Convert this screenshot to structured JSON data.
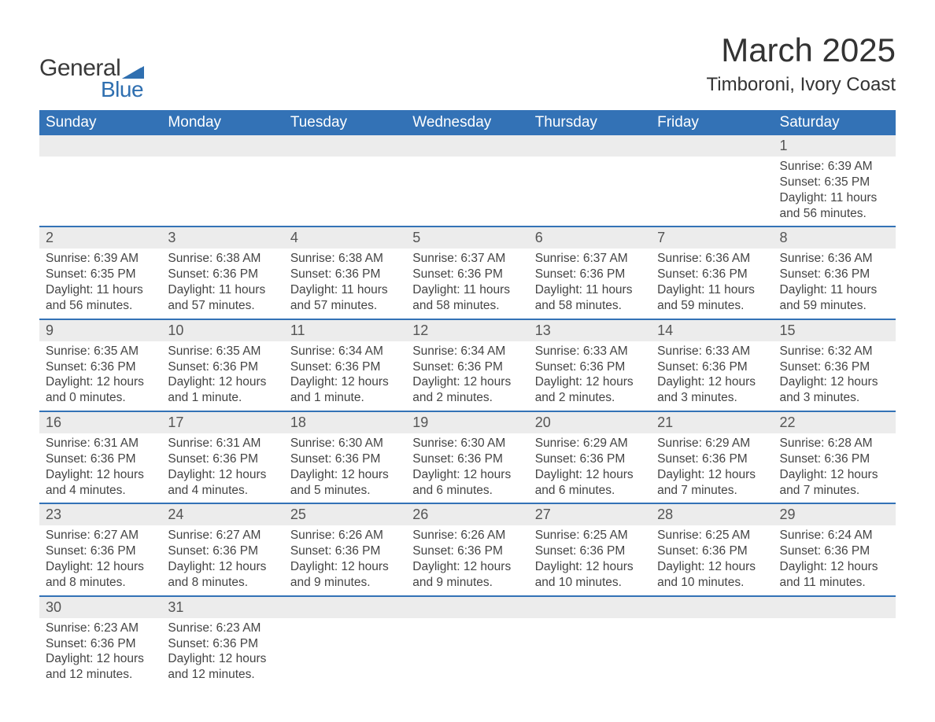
{
  "logo": {
    "text1": "General",
    "text2": "Blue",
    "flag_color": "#2f6fb0"
  },
  "title": {
    "month": "March 2025",
    "location": "Timboroni, Ivory Coast"
  },
  "colors": {
    "header_bg": "#3372b6",
    "header_text": "#ffffff",
    "daynum_bg": "#ececec",
    "row_border": "#3372b6",
    "body_text": "#444444",
    "title_text": "#333333"
  },
  "fonts": {
    "title_size": 42,
    "location_size": 24,
    "weekday_size": 19,
    "daynum_size": 18,
    "detail_size": 15.5
  },
  "weekdays": [
    "Sunday",
    "Monday",
    "Tuesday",
    "Wednesday",
    "Thursday",
    "Friday",
    "Saturday"
  ],
  "layout": {
    "columns": 7,
    "first_weekday_index": 6,
    "days_in_month": 31
  },
  "days": [
    {
      "n": 1,
      "sunrise": "6:39 AM",
      "sunset": "6:35 PM",
      "daylight": "11 hours and 56 minutes."
    },
    {
      "n": 2,
      "sunrise": "6:39 AM",
      "sunset": "6:35 PM",
      "daylight": "11 hours and 56 minutes."
    },
    {
      "n": 3,
      "sunrise": "6:38 AM",
      "sunset": "6:36 PM",
      "daylight": "11 hours and 57 minutes."
    },
    {
      "n": 4,
      "sunrise": "6:38 AM",
      "sunset": "6:36 PM",
      "daylight": "11 hours and 57 minutes."
    },
    {
      "n": 5,
      "sunrise": "6:37 AM",
      "sunset": "6:36 PM",
      "daylight": "11 hours and 58 minutes."
    },
    {
      "n": 6,
      "sunrise": "6:37 AM",
      "sunset": "6:36 PM",
      "daylight": "11 hours and 58 minutes."
    },
    {
      "n": 7,
      "sunrise": "6:36 AM",
      "sunset": "6:36 PM",
      "daylight": "11 hours and 59 minutes."
    },
    {
      "n": 8,
      "sunrise": "6:36 AM",
      "sunset": "6:36 PM",
      "daylight": "11 hours and 59 minutes."
    },
    {
      "n": 9,
      "sunrise": "6:35 AM",
      "sunset": "6:36 PM",
      "daylight": "12 hours and 0 minutes."
    },
    {
      "n": 10,
      "sunrise": "6:35 AM",
      "sunset": "6:36 PM",
      "daylight": "12 hours and 1 minute."
    },
    {
      "n": 11,
      "sunrise": "6:34 AM",
      "sunset": "6:36 PM",
      "daylight": "12 hours and 1 minute."
    },
    {
      "n": 12,
      "sunrise": "6:34 AM",
      "sunset": "6:36 PM",
      "daylight": "12 hours and 2 minutes."
    },
    {
      "n": 13,
      "sunrise": "6:33 AM",
      "sunset": "6:36 PM",
      "daylight": "12 hours and 2 minutes."
    },
    {
      "n": 14,
      "sunrise": "6:33 AM",
      "sunset": "6:36 PM",
      "daylight": "12 hours and 3 minutes."
    },
    {
      "n": 15,
      "sunrise": "6:32 AM",
      "sunset": "6:36 PM",
      "daylight": "12 hours and 3 minutes."
    },
    {
      "n": 16,
      "sunrise": "6:31 AM",
      "sunset": "6:36 PM",
      "daylight": "12 hours and 4 minutes."
    },
    {
      "n": 17,
      "sunrise": "6:31 AM",
      "sunset": "6:36 PM",
      "daylight": "12 hours and 4 minutes."
    },
    {
      "n": 18,
      "sunrise": "6:30 AM",
      "sunset": "6:36 PM",
      "daylight": "12 hours and 5 minutes."
    },
    {
      "n": 19,
      "sunrise": "6:30 AM",
      "sunset": "6:36 PM",
      "daylight": "12 hours and 6 minutes."
    },
    {
      "n": 20,
      "sunrise": "6:29 AM",
      "sunset": "6:36 PM",
      "daylight": "12 hours and 6 minutes."
    },
    {
      "n": 21,
      "sunrise": "6:29 AM",
      "sunset": "6:36 PM",
      "daylight": "12 hours and 7 minutes."
    },
    {
      "n": 22,
      "sunrise": "6:28 AM",
      "sunset": "6:36 PM",
      "daylight": "12 hours and 7 minutes."
    },
    {
      "n": 23,
      "sunrise": "6:27 AM",
      "sunset": "6:36 PM",
      "daylight": "12 hours and 8 minutes."
    },
    {
      "n": 24,
      "sunrise": "6:27 AM",
      "sunset": "6:36 PM",
      "daylight": "12 hours and 8 minutes."
    },
    {
      "n": 25,
      "sunrise": "6:26 AM",
      "sunset": "6:36 PM",
      "daylight": "12 hours and 9 minutes."
    },
    {
      "n": 26,
      "sunrise": "6:26 AM",
      "sunset": "6:36 PM",
      "daylight": "12 hours and 9 minutes."
    },
    {
      "n": 27,
      "sunrise": "6:25 AM",
      "sunset": "6:36 PM",
      "daylight": "12 hours and 10 minutes."
    },
    {
      "n": 28,
      "sunrise": "6:25 AM",
      "sunset": "6:36 PM",
      "daylight": "12 hours and 10 minutes."
    },
    {
      "n": 29,
      "sunrise": "6:24 AM",
      "sunset": "6:36 PM",
      "daylight": "12 hours and 11 minutes."
    },
    {
      "n": 30,
      "sunrise": "6:23 AM",
      "sunset": "6:36 PM",
      "daylight": "12 hours and 12 minutes."
    },
    {
      "n": 31,
      "sunrise": "6:23 AM",
      "sunset": "6:36 PM",
      "daylight": "12 hours and 12 minutes."
    }
  ],
  "labels": {
    "sunrise": "Sunrise:",
    "sunset": "Sunset:",
    "daylight": "Daylight:"
  }
}
